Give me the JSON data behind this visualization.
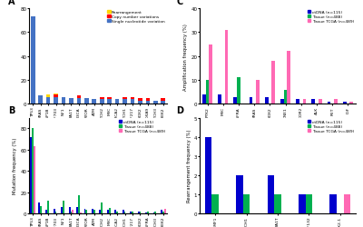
{
  "panel_A": {
    "title": "A",
    "genes": [
      "TP53",
      "KRAS",
      "LSP1B",
      "ZNF703",
      "NF1",
      "FA1T",
      "PI3CA",
      "MTOR",
      "ATM",
      "NOTCH2",
      "MYC",
      "SMARCA2",
      "NOTCH1",
      "ZNF217",
      "SOX2",
      "HOXA9",
      "NOTCH3",
      "CHEK2"
    ],
    "snv": [
      73,
      7,
      6,
      6,
      6,
      5,
      5,
      5,
      4,
      4,
      4,
      4,
      4,
      4,
      3,
      3,
      3,
      3
    ],
    "cnv": [
      0,
      0,
      0,
      2,
      0,
      0,
      2,
      0,
      0,
      2,
      2,
      0,
      2,
      2,
      2,
      2,
      0,
      2
    ],
    "rearr": [
      0,
      0,
      2,
      1,
      0,
      0,
      0,
      0,
      0,
      0,
      0,
      0,
      0,
      0,
      0,
      0,
      0,
      0
    ],
    "ylabel": "",
    "ylim": [
      0,
      80
    ],
    "yticks": [
      0,
      20,
      40,
      60,
      80
    ]
  },
  "panel_B": {
    "title": "B",
    "genes": [
      "TP53",
      "KRAS",
      "LSP1B",
      "ZNF703",
      "NF1",
      "FA1T",
      "PI3CA",
      "MTOR",
      "ATM",
      "NOTCH2",
      "MYC",
      "SMARCA2",
      "NOTCH1",
      "ZNF217",
      "SOX2",
      "PDGFRA",
      "NOTCH3",
      "CHEK2"
    ],
    "cdna": [
      72,
      10,
      3,
      4,
      6,
      6,
      6,
      4,
      4,
      3,
      3,
      3,
      3,
      2,
      2,
      1,
      1,
      3
    ],
    "tissue": [
      80,
      7,
      12,
      2,
      12,
      2,
      17,
      3,
      3,
      10,
      5,
      2,
      2,
      2,
      2,
      2,
      2,
      2
    ],
    "tcga": [
      63,
      0,
      0,
      0,
      0,
      3,
      1,
      0,
      0,
      0,
      0,
      0,
      0,
      0,
      0,
      0,
      0,
      4
    ],
    "ylabel": "Mutation frequency (%)",
    "ylim": [
      0,
      90
    ],
    "yticks": [
      0,
      20,
      40,
      60,
      80
    ]
  },
  "panel_C": {
    "title": "C",
    "genes": [
      "PTK2",
      "MYC",
      "PDGFRA",
      "KRAS",
      "SOX2",
      "CCNE1",
      "DDR2",
      "ALK",
      "RET",
      "IGF"
    ],
    "cdna": [
      4,
      4,
      3,
      3,
      3,
      2,
      2,
      2,
      1,
      1
    ],
    "tissue": [
      10,
      0,
      11,
      0,
      0,
      6,
      0,
      0,
      0,
      0
    ],
    "tcga": [
      25,
      31,
      0,
      10,
      18,
      22,
      2,
      2,
      2,
      1
    ],
    "ylabel": "Amplification frequency (%)",
    "ylim": [
      0,
      40
    ],
    "yticks": [
      0,
      10,
      20,
      30,
      40
    ]
  },
  "panel_D": {
    "title": "D",
    "genes": [
      "LMF1",
      "NOTCH1",
      "FA1T",
      "FGF132",
      "NKX2-1"
    ],
    "cdna": [
      4,
      2,
      2,
      1,
      1
    ],
    "tissue": [
      1,
      1,
      1,
      1,
      0
    ],
    "tcga": [
      0,
      0,
      0,
      0,
      1
    ],
    "ylabel": "Rearrangement frequency (%)",
    "ylim": [
      0,
      5
    ],
    "yticks": [
      0,
      1,
      2,
      3,
      4,
      5
    ]
  },
  "colors": {
    "cdna": "#0000CD",
    "tissue": "#00B050",
    "tcga": "#FF69B4",
    "snv": "#4472C4",
    "cnv": "#FF0000",
    "rearr": "#FFD700"
  },
  "legend_B": [
    "ctDNA (n=115)",
    "Tissue (n=488)",
    "Tissue TCGA (n=489)"
  ],
  "legend_A": [
    "Rearrangement",
    "Copy number variations",
    "Single nucleotide variation"
  ]
}
